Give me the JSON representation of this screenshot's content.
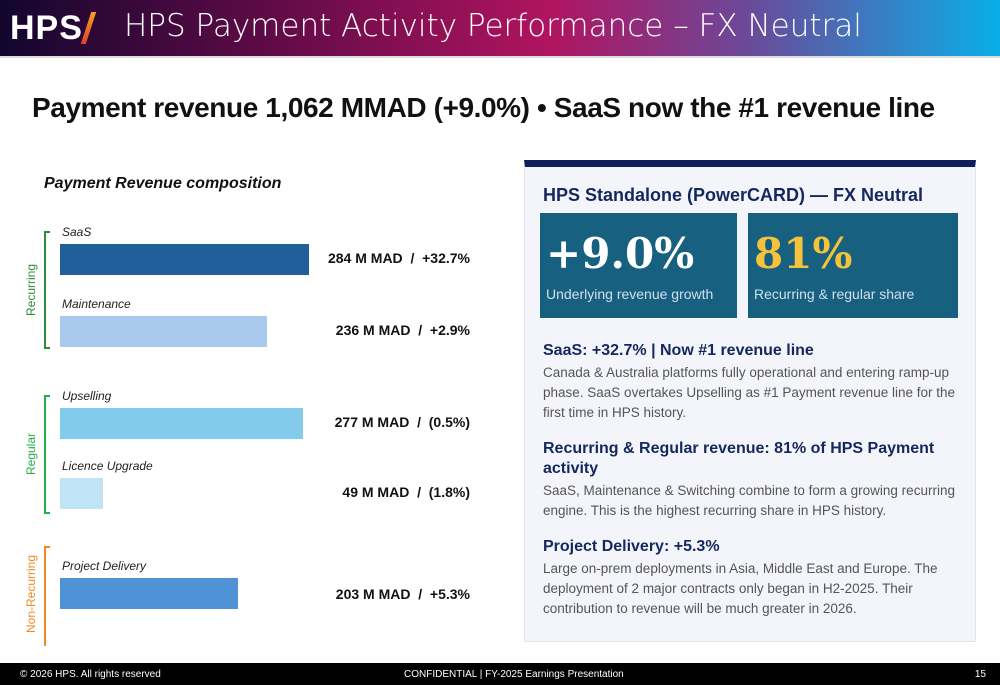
{
  "header": {
    "logo": "HPS",
    "title": "HPS Payment Activity Performance – FX Neutral"
  },
  "headline": "Payment revenue 1,062 MMAD (+9.0%) • SaaS now the #1 revenue line",
  "chart_data": {
    "type": "bar",
    "title": "Payment Revenue composition",
    "unit": "M MAD",
    "groups": [
      {
        "name": "Recurring",
        "color": "#2e8b3a"
      },
      {
        "name": "Regular",
        "color": "#22b04b"
      },
      {
        "name": "Non-Recurring",
        "color": "#f08a24"
      }
    ],
    "bars": [
      {
        "category": "SaaS",
        "value": 284,
        "label": "284 M MAD  /  +32.7%",
        "group": "Recurring",
        "color": "#215f9a"
      },
      {
        "category": "Maintenance",
        "value": 236,
        "label": "236 M MAD  /  +2.9%",
        "group": "Recurring",
        "color": "#a8c9ec"
      },
      {
        "category": "Upselling",
        "value": 277,
        "label": "277 M MAD  /  (0.5%)",
        "group": "Regular",
        "color": "#82cbeb"
      },
      {
        "category": "Licence Upgrade",
        "value": 49,
        "label": "49 M MAD  /  (1.8%)",
        "group": "Regular",
        "color": "#c0e4f5"
      },
      {
        "category": "Project Delivery",
        "value": 203,
        "label": "203 M MAD  /  +5.3%",
        "group": "Non-Recurring",
        "color": "#4f93d6"
      }
    ]
  },
  "panel": {
    "title": "HPS Standalone (PowerCARD) — FX Neutral",
    "kpis": [
      {
        "value": "+9.0%",
        "label": "Underlying revenue growth",
        "color": "#ffffff"
      },
      {
        "value": "81%",
        "label": "Recurring & regular share",
        "color": "#f5c33b"
      }
    ],
    "sections": [
      {
        "heading": "SaaS: +32.7% | Now #1 revenue line",
        "text": "Canada & Australia platforms fully operational and entering ramp-up phase. SaaS overtakes Upselling as #1 Payment revenue line for the first time in HPS history."
      },
      {
        "heading": "Recurring & Regular revenue: 81% of HPS Payment activity",
        "text": "SaaS, Maintenance & Switching combine to form a growing recurring engine. This is the highest recurring share in HPS history."
      },
      {
        "heading": "Project Delivery: +5.3%",
        "text": "Large on-prem deployments in Asia, Middle East and Europe. The deployment of 2 major contracts only began in H2-2025. Their contribution to revenue will be much greater in 2026."
      }
    ]
  },
  "footer": {
    "copyright": "© 2026 HPS. All rights reserved",
    "center": "CONFIDENTIAL | FY-2025 Earnings Presentation",
    "page": "15"
  }
}
